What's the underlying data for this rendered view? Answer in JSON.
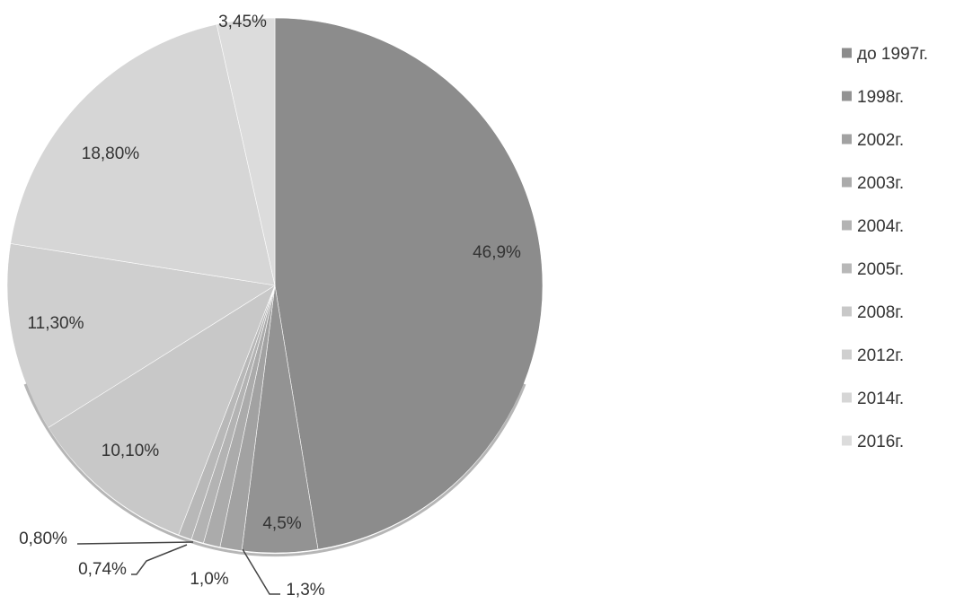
{
  "chart_data": {
    "type": "pie",
    "title": "",
    "legend_position": "right",
    "categories": [
      "до 1997г.",
      "1998г.",
      "2002г.",
      "2003г.",
      "2004г.",
      "2005г.",
      "2008г.",
      "2012г.",
      "2014г.",
      "2016г."
    ],
    "values": [
      46.9,
      4.5,
      1.3,
      1.0,
      0.74,
      0.8,
      10.1,
      11.3,
      18.8,
      3.45
    ],
    "labels": [
      "46,9%",
      "4,5%",
      "1,3%",
      "1,0%",
      "0,74%",
      "0,80%",
      "10,10%",
      "11,30%",
      "18,80%",
      "3,45%"
    ],
    "colors": [
      "#8c8c8c",
      "#939393",
      "#a2a2a2",
      "#ababab",
      "#b3b3b3",
      "#b8b8b8",
      "#c8c8c8",
      "#cfcfcf",
      "#d6d6d6",
      "#dcdcdc"
    ]
  }
}
